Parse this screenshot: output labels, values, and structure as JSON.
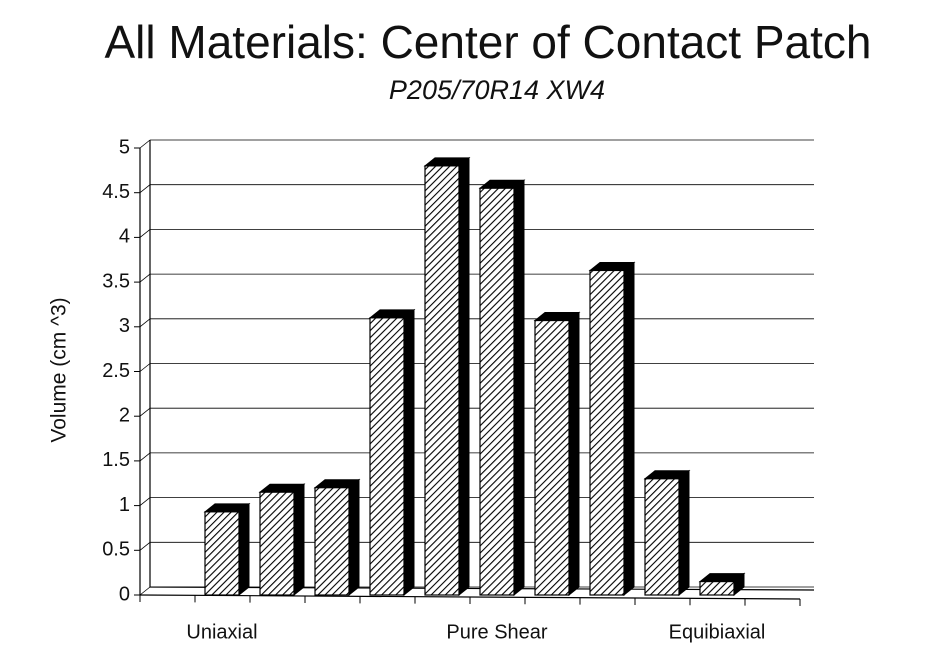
{
  "chart_data": {
    "type": "bar3d",
    "title": "All Materials:  Center of Contact Patch",
    "subtitle": "P205/70R14 XW4",
    "y_label": "Volume (cm ^3)",
    "categories": [
      "Uniaxial",
      null,
      null,
      null,
      null,
      "Pure Shear",
      null,
      null,
      null,
      "Equibiaxial"
    ],
    "values": [
      0.93,
      1.15,
      1.2,
      3.1,
      4.8,
      4.55,
      3.07,
      3.63,
      1.3,
      0.15
    ],
    "color": "#000000",
    "ylim": [
      0,
      5
    ],
    "yticks": [
      0,
      0.5,
      1,
      1.5,
      2,
      2.5,
      3,
      3.5,
      4,
      4.5,
      5
    ],
    "grid": true
  }
}
